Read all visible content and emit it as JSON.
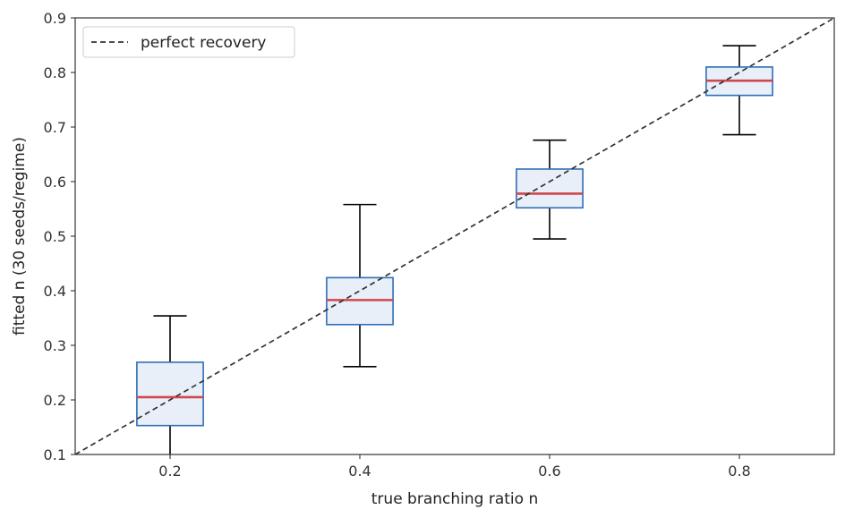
{
  "chart_data": {
    "type": "box",
    "xlabel": "true branching ratio n",
    "ylabel": "fitted n (30 seeds/regime)",
    "xlim": [
      0.1,
      0.9
    ],
    "ylim": [
      0.1,
      0.9
    ],
    "xticks": [
      "0.2",
      "0.4",
      "0.6",
      "0.8"
    ],
    "yticks": [
      "0.1",
      "0.2",
      "0.3",
      "0.4",
      "0.5",
      "0.6",
      "0.7",
      "0.8",
      "0.9"
    ],
    "grid": false,
    "legend": {
      "placement": "top-left",
      "entries": [
        "perfect recovery"
      ]
    },
    "boxes": [
      {
        "x": 0.2,
        "whisker_low": 0.09,
        "q1": 0.153,
        "median": 0.205,
        "q3": 0.269,
        "whisker_high": 0.354
      },
      {
        "x": 0.4,
        "whisker_low": 0.261,
        "q1": 0.338,
        "median": 0.383,
        "q3": 0.424,
        "whisker_high": 0.558
      },
      {
        "x": 0.6,
        "whisker_low": 0.495,
        "q1": 0.552,
        "median": 0.578,
        "q3": 0.623,
        "whisker_high": 0.676
      },
      {
        "x": 0.8,
        "whisker_low": 0.686,
        "q1": 0.758,
        "median": 0.785,
        "q3": 0.81,
        "whisker_high": 0.849
      }
    ],
    "reference_line": {
      "x": [
        0.1,
        0.9
      ],
      "y": [
        0.1,
        0.9
      ],
      "style": "dashed"
    },
    "colors": {
      "box_edge": "#2f6eb5",
      "box_fill": "#e8eff8",
      "median": "#d0474f",
      "whisker": "#000000",
      "reference": "#333333",
      "axes": "#333333"
    }
  }
}
